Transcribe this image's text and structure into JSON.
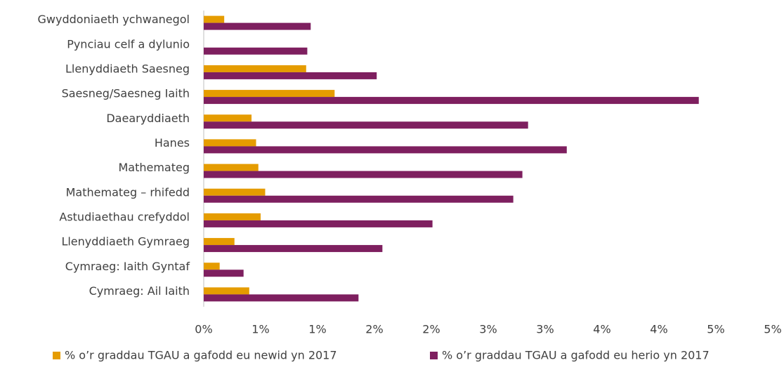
{
  "chart_data": {
    "type": "bar",
    "orientation": "horizontal",
    "categories": [
      "Gwyddoniaeth ychwanegol",
      "Pynciau celf a dylunio",
      "Llenyddiaeth Saesneg",
      "Saesneg/Saesneg Iaith",
      "Daearyddiaeth",
      "Hanes",
      "Mathemateg",
      "Mathemateg – rhifedd",
      "Astudiaethau crefyddol",
      "Llenyddiaeth Gymraeg",
      "Cymraeg: Iaith Gyntaf",
      "Cymraeg: Ail Iaith"
    ],
    "series": [
      {
        "name": "% o’r graddau TGAU a gafodd eu newid yn 2017",
        "color": "#e59c00",
        "values": [
          0.18,
          0,
          0.9,
          1.15,
          0.42,
          0.46,
          0.48,
          0.54,
          0.5,
          0.27,
          0.14,
          0.4
        ]
      },
      {
        "name": "% o’r graddau TGAU a gafodd eu herio yn 2017",
        "color": "#7e1f5f",
        "values": [
          0.94,
          0.91,
          1.52,
          4.35,
          2.85,
          3.19,
          2.8,
          2.72,
          2.01,
          1.57,
          0.35,
          1.36
        ]
      }
    ],
    "xlim": [
      0,
      5
    ],
    "xticks": [
      {
        "value": 0,
        "label": "0%"
      },
      {
        "value": 0.5,
        "label": "1%"
      },
      {
        "value": 1,
        "label": "1%"
      },
      {
        "value": 1.5,
        "label": "2%"
      },
      {
        "value": 2,
        "label": "2%"
      },
      {
        "value": 2.5,
        "label": "3%"
      },
      {
        "value": 3,
        "label": "3%"
      },
      {
        "value": 3.5,
        "label": "4%"
      },
      {
        "value": 4,
        "label": "4%"
      },
      {
        "value": 4.5,
        "label": "5%"
      },
      {
        "value": 5,
        "label": "5%"
      }
    ],
    "grid": false,
    "legend": "bottom"
  }
}
